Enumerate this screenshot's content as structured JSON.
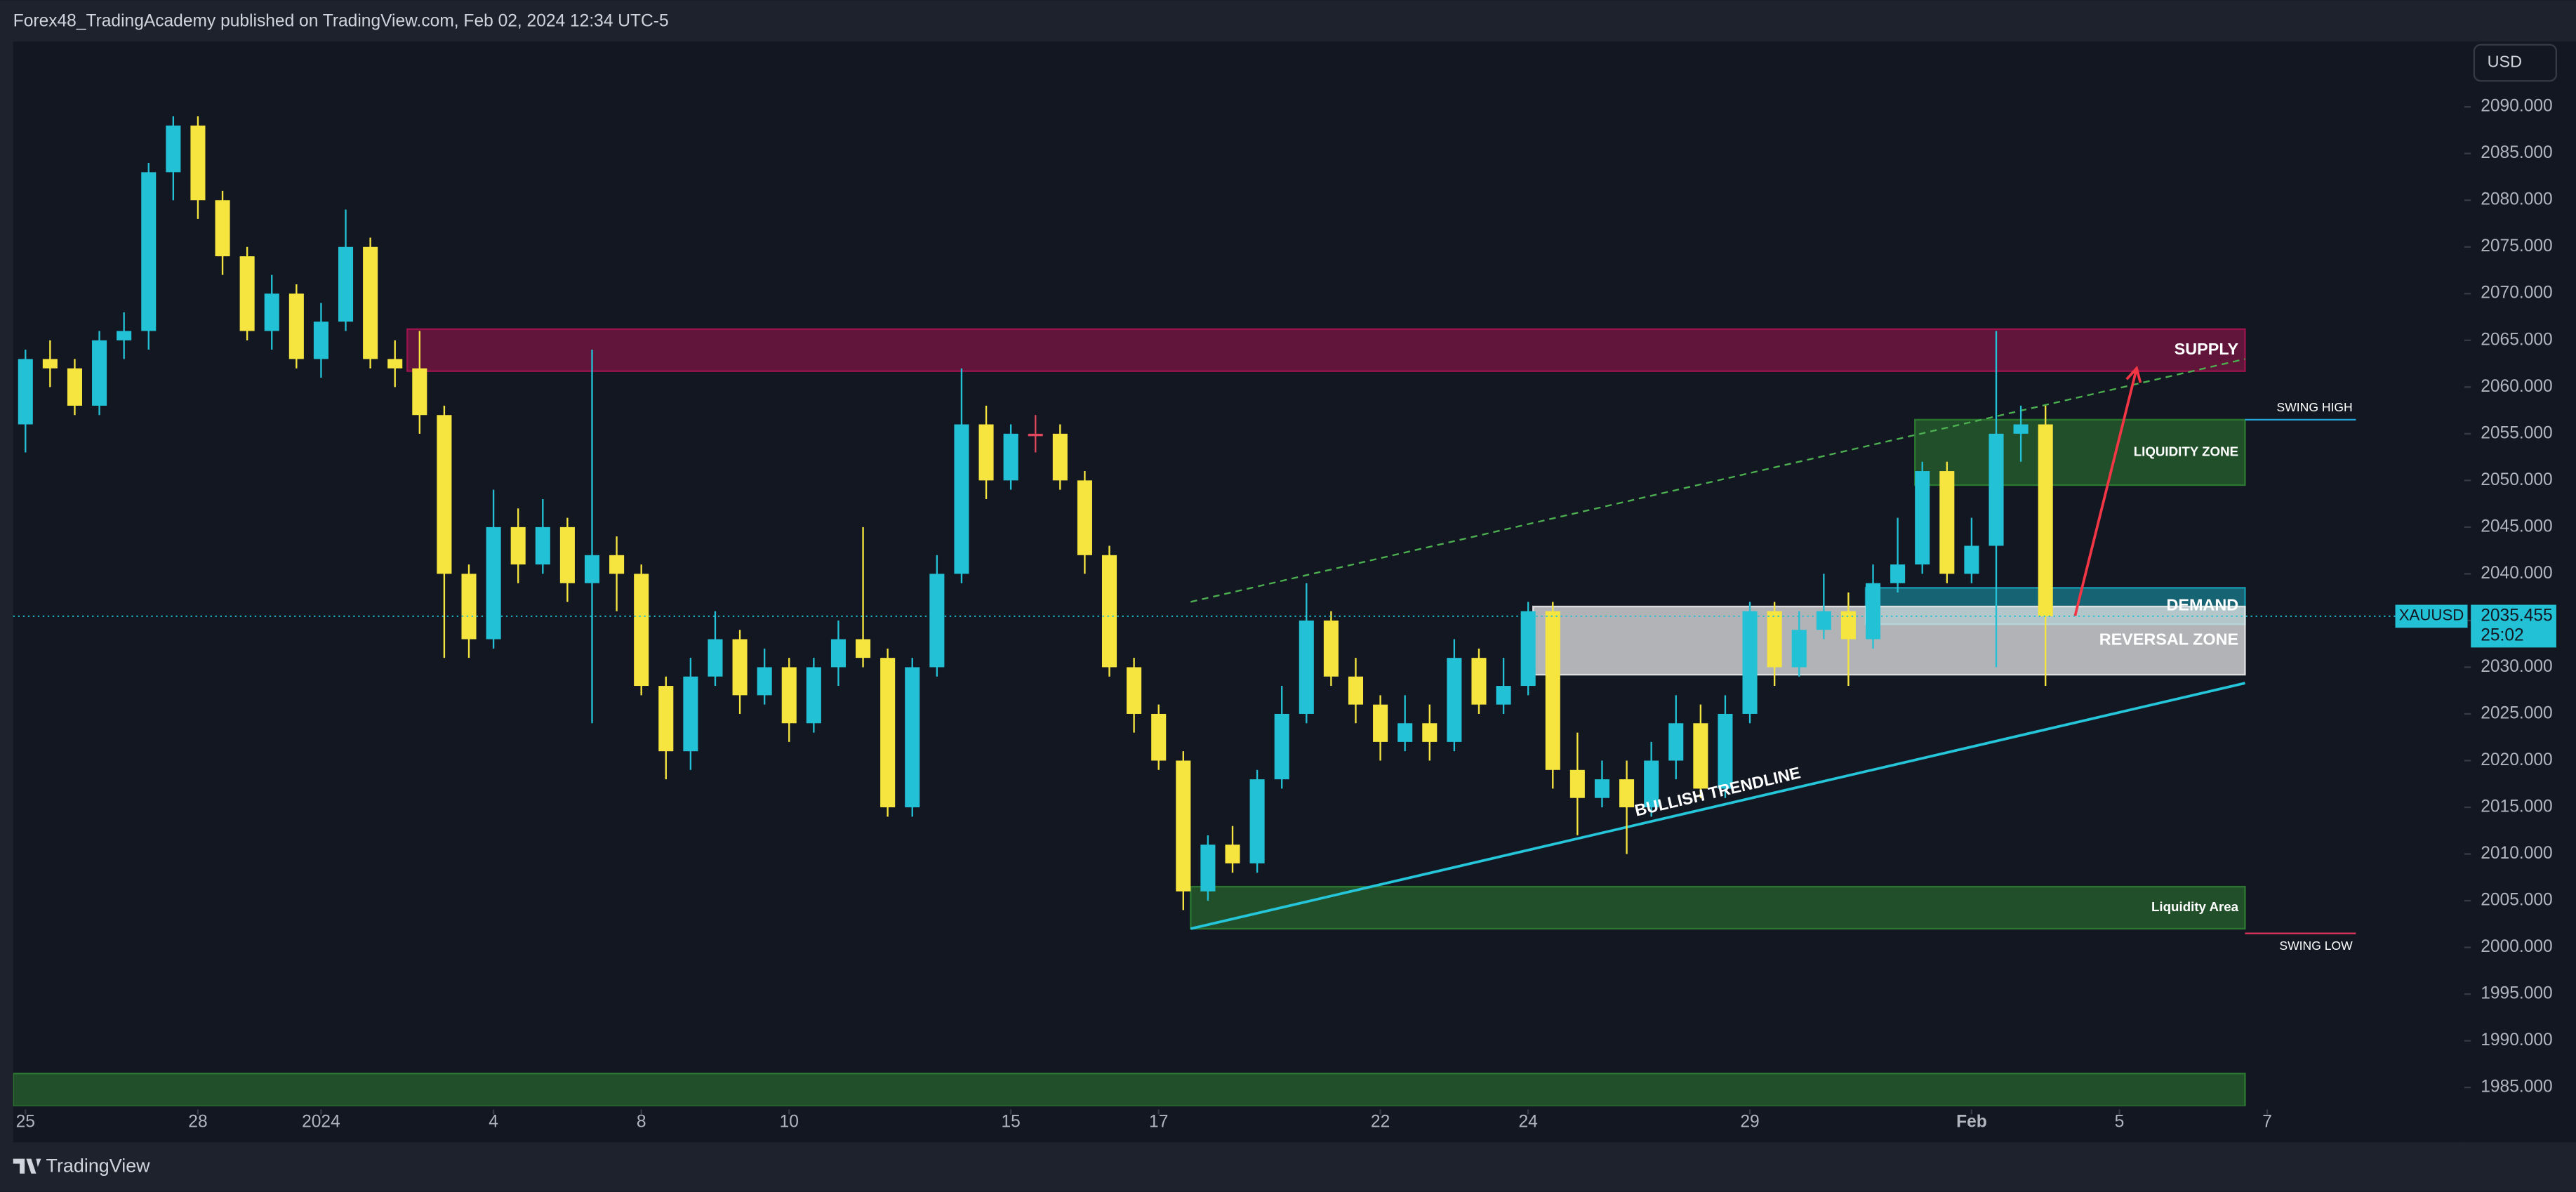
{
  "header": {
    "text": "Forex48_TradingAcademy published on TradingView.com, Feb 02, 2024 12:34 UTC-5"
  },
  "footer": {
    "brand": "TradingView"
  },
  "toolbar": {
    "currency": "USD"
  },
  "chart_data": {
    "type": "candlestick",
    "symbol": "XAUUSD",
    "countdown": "25:02",
    "up_color": "#22c1d6",
    "down_color": "#f6e53f",
    "flat_color": "#e0465e",
    "xlim": [
      -0.5,
      99
    ],
    "ylim": [
      1983,
      2097
    ],
    "xticks": [
      {
        "value": 0,
        "label": "25"
      },
      {
        "value": 7,
        "label": "28"
      },
      {
        "value": 12,
        "label": "2024"
      },
      {
        "value": 19,
        "label": "4"
      },
      {
        "value": 25,
        "label": "8"
      },
      {
        "value": 31,
        "label": "10"
      },
      {
        "value": 40,
        "label": "15"
      },
      {
        "value": 46,
        "label": "17"
      },
      {
        "value": 55,
        "label": "22"
      },
      {
        "value": 61,
        "label": "24"
      },
      {
        "value": 70,
        "label": "29"
      },
      {
        "value": 79,
        "label": "Feb"
      },
      {
        "value": 85,
        "label": "5"
      },
      {
        "value": 91,
        "label": "7"
      }
    ],
    "yticks": [
      {
        "value": 1985,
        "label": "1985.000"
      },
      {
        "value": 1990,
        "label": "1990.000"
      },
      {
        "value": 1995,
        "label": "1995.000"
      },
      {
        "value": 2000,
        "label": "2000.000"
      },
      {
        "value": 2005,
        "label": "2005.000"
      },
      {
        "value": 2010,
        "label": "2010.000"
      },
      {
        "value": 2015,
        "label": "2015.000"
      },
      {
        "value": 2020,
        "label": "2020.000"
      },
      {
        "value": 2025,
        "label": "2025.000"
      },
      {
        "value": 2030,
        "label": "2030.000"
      },
      {
        "value": 2035,
        "label": "2035.000"
      },
      {
        "value": 2040,
        "label": "2040.000"
      },
      {
        "value": 2045,
        "label": "2045.000"
      },
      {
        "value": 2050,
        "label": "2050.000"
      },
      {
        "value": 2055,
        "label": "2055.000"
      },
      {
        "value": 2060,
        "label": "2060.000"
      },
      {
        "value": 2065,
        "label": "2065.000"
      },
      {
        "value": 2070,
        "label": "2070.000"
      },
      {
        "value": 2075,
        "label": "2075.000"
      },
      {
        "value": 2080,
        "label": "2080.000"
      },
      {
        "value": 2085,
        "label": "2085.000"
      },
      {
        "value": 2090,
        "label": "2090.000"
      }
    ],
    "open": [
      2056,
      2063,
      2062,
      2058,
      2065,
      2066,
      2083,
      2088,
      2080,
      2074,
      2066,
      2070,
      2063,
      2067,
      2075,
      2063,
      2062,
      2057,
      2040,
      2033,
      2045,
      2041,
      2045,
      2039,
      2042,
      2040,
      2028,
      2021,
      2029,
      2033,
      2027,
      2030,
      2024,
      2030,
      2033,
      2031,
      2015,
      2030,
      2040,
      2056,
      2050,
      2055,
      2055,
      2050,
      2042,
      2030,
      2025,
      2020,
      2006,
      2011,
      2009,
      2018,
      2025,
      2035,
      2029,
      2026,
      2022,
      2024,
      2022,
      2031,
      2026,
      2028,
      2036,
      2019,
      2016,
      2018,
      2015,
      2020,
      2024,
      2017,
      2025,
      2036,
      2030,
      2034,
      2036,
      2033,
      2039,
      2041,
      2051,
      2040,
      2043,
      2055,
      2056
    ],
    "high": [
      2064,
      2065,
      2063,
      2066,
      2068,
      2084,
      2089,
      2089,
      2081,
      2075,
      2072,
      2071,
      2069,
      2079,
      2076,
      2065,
      2066,
      2058,
      2041,
      2049,
      2047,
      2048,
      2046,
      2064,
      2044,
      2041,
      2029,
      2031,
      2036,
      2034,
      2032,
      2031,
      2031,
      2035,
      2045,
      2032,
      2031,
      2042,
      2062,
      2058,
      2056,
      2057,
      2056,
      2051,
      2043,
      2031,
      2026,
      2021,
      2012,
      2013,
      2019,
      2028,
      2039,
      2036,
      2031,
      2027,
      2027,
      2026,
      2033,
      2032,
      2031,
      2037,
      2037,
      2023,
      2020,
      2020,
      2022,
      2027,
      2026,
      2027,
      2037,
      2037,
      2036,
      2040,
      2038,
      2041,
      2046,
      2052,
      2052,
      2046,
      2066,
      2058,
      2058
    ],
    "low": [
      2053,
      2060,
      2057,
      2057,
      2063,
      2064,
      2080,
      2078,
      2072,
      2065,
      2064,
      2062,
      2061,
      2066,
      2062,
      2060,
      2055,
      2031,
      2031,
      2032,
      2039,
      2040,
      2037,
      2024,
      2036,
      2027,
      2018,
      2019,
      2028,
      2025,
      2026,
      2022,
      2023,
      2028,
      2030,
      2014,
      2014,
      2029,
      2039,
      2048,
      2049,
      2053,
      2049,
      2040,
      2029,
      2023,
      2019,
      2004,
      2005,
      2008,
      2008,
      2017,
      2024,
      2028,
      2024,
      2020,
      2021,
      2020,
      2021,
      2025,
      2025,
      2027,
      2017,
      2012,
      2015,
      2010,
      2014,
      2018,
      2016,
      2016,
      2024,
      2028,
      2029,
      2033,
      2028,
      2032,
      2038,
      2040,
      2039,
      2039,
      2030,
      2052,
      2028
    ],
    "close": [
      2063,
      2062,
      2058,
      2065,
      2066,
      2083,
      2088,
      2080,
      2074,
      2066,
      2070,
      2063,
      2067,
      2075,
      2063,
      2062,
      2057,
      2040,
      2033,
      2045,
      2041,
      2045,
      2039,
      2042,
      2040,
      2028,
      2021,
      2029,
      2033,
      2027,
      2030,
      2024,
      2030,
      2033,
      2031,
      2015,
      2030,
      2040,
      2056,
      2050,
      2055,
      2055,
      2050,
      2042,
      2030,
      2025,
      2020,
      2006,
      2011,
      2009,
      2018,
      2025,
      2035,
      2029,
      2026,
      2022,
      2024,
      2022,
      2031,
      2026,
      2028,
      2036,
      2019,
      2016,
      2018,
      2015,
      2020,
      2024,
      2017,
      2025,
      2036,
      2030,
      2034,
      2036,
      2033,
      2039,
      2041,
      2051,
      2040,
      2043,
      2055,
      2056,
      2035.455
    ],
    "zones": [
      {
        "label": "SUPPLY",
        "ylim": [
          2061.7,
          2066.2
        ],
        "xlim": [
          15.5,
          90.1
        ],
        "color": "#a3144f"
      },
      {
        "label": "LIQUIDITY ZONE",
        "ylim": [
          2049.5,
          2056.5
        ],
        "xlim": [
          76.7,
          90.1
        ],
        "color": "#2e7d32"
      },
      {
        "label": "DEMAND",
        "ylim": [
          2034.6,
          2038.5
        ],
        "xlim": [
          74.7,
          90.1
        ],
        "color": "#1aa3b8"
      },
      {
        "label": "REVERSAL ZONE",
        "ylim": [
          2029.2,
          2036.5
        ],
        "xlim": [
          61.2,
          90.1
        ],
        "color": "#e8e8e8"
      },
      {
        "label": "Liquidity Area",
        "ylim": [
          2002,
          2006.5
        ],
        "xlim": [
          47.3,
          90.1
        ],
        "color": "#2e7d32"
      },
      {
        "ylim": [
          1983,
          1986.5
        ],
        "xlim": [
          -0.5,
          90.1
        ],
        "color": "#2e7d32"
      }
    ],
    "trendlines": [
      {
        "label": "BULLISH TRENDLINE",
        "x": [
          47.3,
          90.1
        ],
        "y": [
          2002,
          2028.3
        ],
        "color": "#26c6da",
        "dashed": false
      },
      {
        "x": [
          47.3,
          90.1
        ],
        "y": [
          2037,
          2063
        ],
        "color": "#4caf50",
        "dashed": true
      }
    ],
    "levels": [
      {
        "label": "SWING HIGH",
        "value": 2056.5,
        "xlim": [
          90.1,
          94.6
        ],
        "color": "#26a6d9"
      },
      {
        "label": "SWING LOW",
        "value": 2001.5,
        "xlim": [
          90.1,
          94.6
        ],
        "color": "#e0365e"
      }
    ],
    "arrows": [
      {
        "x": [
          83.2,
          85.7
        ],
        "y": [
          2035.5,
          2062
        ],
        "color": "#f23645"
      }
    ]
  }
}
